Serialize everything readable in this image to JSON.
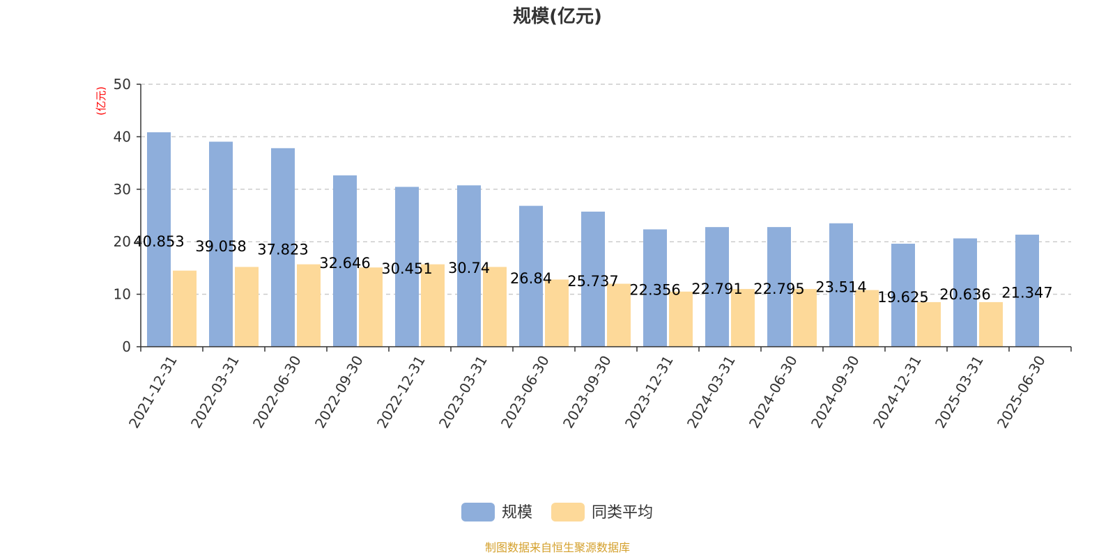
{
  "chart_data": {
    "type": "bar",
    "title": "规模(亿元)",
    "ylabel": "(亿元)",
    "xlabel": "",
    "ylim": [
      0,
      50
    ],
    "yticks": [
      0,
      10,
      20,
      30,
      40,
      50
    ],
    "grid": true,
    "legend_position": "bottom",
    "categories": [
      "2021-12-31",
      "2022-03-31",
      "2022-06-30",
      "2022-09-30",
      "2022-12-31",
      "2023-03-31",
      "2023-06-30",
      "2023-09-30",
      "2023-12-31",
      "2024-03-31",
      "2024-06-30",
      "2024-09-30",
      "2024-12-31",
      "2025-03-31",
      "2025-06-30"
    ],
    "series": [
      {
        "name": "规模",
        "color": "#8eaedb",
        "values": [
          40.853,
          39.058,
          37.823,
          32.646,
          30.451,
          30.74,
          26.84,
          25.737,
          22.356,
          22.791,
          22.795,
          23.514,
          19.625,
          20.636,
          21.347
        ],
        "labels": [
          "40.853",
          "39.058",
          "37.823",
          "32.646",
          "30.451",
          "30.74",
          "26.84",
          "25.737",
          "22.356",
          "22.791",
          "22.795",
          "23.514",
          "19.625",
          "20.636",
          "21.347"
        ]
      },
      {
        "name": "同类平均",
        "color": "#fdd999",
        "values": [
          14.5,
          15.2,
          15.7,
          15.1,
          15.7,
          15.2,
          12.8,
          12.0,
          10.5,
          11.0,
          11.0,
          10.8,
          8.5,
          8.5,
          null
        ]
      }
    ],
    "ylabel_color": "#ff0000"
  },
  "footer": {
    "source": "制图数据来自恒生聚源数据库",
    "source_color": "#d4a02c"
  }
}
